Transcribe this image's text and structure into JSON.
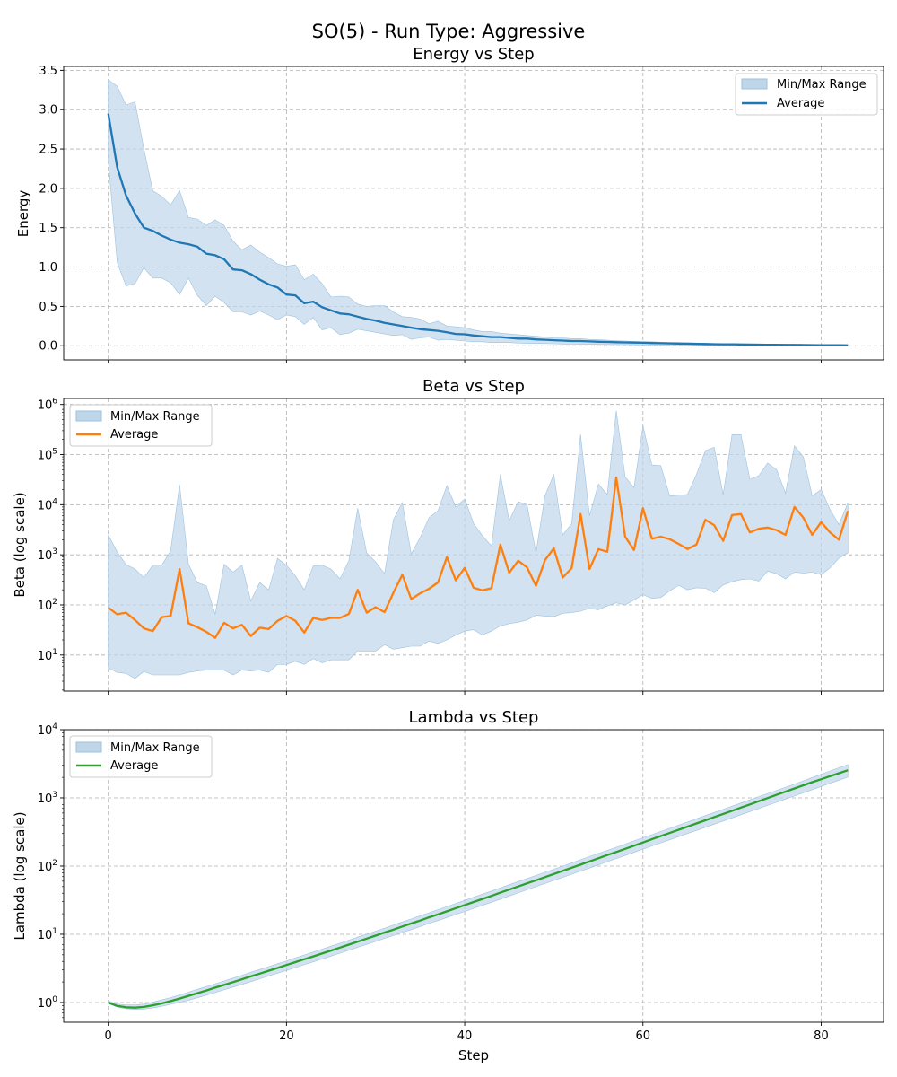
{
  "figure_title": "SO(5) - Run Type: Aggressive",
  "colors": {
    "band_fill": "#bfd6e9",
    "band_edge": "#9ec2df",
    "energy_line": "#1f77b4",
    "beta_line": "#ff7f0e",
    "lambda_line": "#2ca02c"
  },
  "chart_data": [
    {
      "type": "area",
      "title": "Energy vs Step",
      "xlabel": "",
      "ylabel": "Energy",
      "scale": "linear",
      "xlim": [
        -5,
        87
      ],
      "ylim": [
        -0.18,
        3.55
      ],
      "xticks": [
        0,
        20,
        40,
        60,
        80
      ],
      "yticks": [
        0.0,
        0.5,
        1.0,
        1.5,
        2.0,
        2.5,
        3.0,
        3.5
      ],
      "ytick_labels": [
        "0.0",
        "0.5",
        "1.0",
        "1.5",
        "2.0",
        "2.5",
        "3.0",
        "3.5"
      ],
      "grid": true,
      "legend_position": "upper-right",
      "legend": [
        "Min/Max Range",
        "Average"
      ],
      "x": [
        0,
        1,
        2,
        3,
        4,
        5,
        6,
        7,
        8,
        9,
        10,
        11,
        12,
        13,
        14,
        15,
        16,
        17,
        18,
        19,
        20,
        21,
        22,
        23,
        24,
        25,
        26,
        27,
        28,
        29,
        30,
        31,
        32,
        33,
        34,
        35,
        36,
        37,
        38,
        39,
        40,
        41,
        42,
        43,
        44,
        45,
        46,
        47,
        48,
        49,
        50,
        51,
        52,
        53,
        54,
        55,
        56,
        57,
        58,
        59,
        60,
        61,
        62,
        63,
        64,
        65,
        66,
        67,
        68,
        69,
        70,
        71,
        72,
        73,
        74,
        75,
        76,
        77,
        78,
        79,
        80,
        81,
        82,
        83
      ],
      "series": [
        {
          "name": "Average",
          "values": [
            2.95,
            2.27,
            1.91,
            1.68,
            1.5,
            1.46,
            1.4,
            1.35,
            1.31,
            1.29,
            1.26,
            1.17,
            1.15,
            1.1,
            0.97,
            0.96,
            0.91,
            0.84,
            0.78,
            0.74,
            0.65,
            0.64,
            0.54,
            0.56,
            0.49,
            0.45,
            0.41,
            0.4,
            0.37,
            0.34,
            0.32,
            0.29,
            0.27,
            0.25,
            0.23,
            0.21,
            0.2,
            0.19,
            0.17,
            0.15,
            0.145,
            0.13,
            0.12,
            0.11,
            0.11,
            0.1,
            0.09,
            0.09,
            0.08,
            0.075,
            0.07,
            0.065,
            0.06,
            0.06,
            0.055,
            0.05,
            0.048,
            0.045,
            0.042,
            0.04,
            0.038,
            0.035,
            0.032,
            0.03,
            0.028,
            0.026,
            0.024,
            0.022,
            0.02,
            0.019,
            0.018,
            0.016,
            0.015,
            0.014,
            0.013,
            0.012,
            0.011,
            0.01,
            0.009,
            0.008,
            0.007,
            0.006,
            0.006,
            0.005
          ]
        },
        {
          "name": "Max",
          "values": [
            3.38,
            3.3,
            3.06,
            3.1,
            2.5,
            1.97,
            1.9,
            1.79,
            1.97,
            1.63,
            1.61,
            1.53,
            1.6,
            1.53,
            1.33,
            1.22,
            1.28,
            1.19,
            1.12,
            1.04,
            1.01,
            1.03,
            0.84,
            0.91,
            0.79,
            0.62,
            0.63,
            0.62,
            0.53,
            0.5,
            0.51,
            0.51,
            0.43,
            0.37,
            0.36,
            0.34,
            0.28,
            0.31,
            0.25,
            0.24,
            0.23,
            0.2,
            0.18,
            0.18,
            0.16,
            0.15,
            0.14,
            0.13,
            0.12,
            0.11,
            0.1,
            0.1,
            0.09,
            0.09,
            0.08,
            0.075,
            0.07,
            0.065,
            0.06,
            0.055,
            0.052,
            0.05,
            0.045,
            0.042,
            0.04,
            0.037,
            0.034,
            0.031,
            0.028,
            0.026,
            0.024,
            0.022,
            0.02,
            0.019,
            0.018,
            0.016,
            0.015,
            0.014,
            0.012,
            0.011,
            0.01,
            0.009,
            0.008,
            0.007
          ]
        },
        {
          "name": "Min",
          "values": [
            2.35,
            1.06,
            0.76,
            0.79,
            0.99,
            0.86,
            0.86,
            0.8,
            0.65,
            0.86,
            0.64,
            0.51,
            0.63,
            0.55,
            0.43,
            0.43,
            0.39,
            0.44,
            0.39,
            0.33,
            0.39,
            0.37,
            0.27,
            0.36,
            0.2,
            0.23,
            0.14,
            0.16,
            0.21,
            0.19,
            0.17,
            0.15,
            0.13,
            0.14,
            0.08,
            0.1,
            0.11,
            0.07,
            0.08,
            0.07,
            0.06,
            0.05,
            0.05,
            0.04,
            0.04,
            0.04,
            0.035,
            0.03,
            0.03,
            0.028,
            0.025,
            0.022,
            0.02,
            0.019,
            0.018,
            0.016,
            0.015,
            0.014,
            0.013,
            0.012,
            0.011,
            0.01,
            0.009,
            0.008,
            0.008,
            0.007,
            0.006,
            0.006,
            0.005,
            0.005,
            0.004,
            0.004,
            0.003,
            0.003,
            0.003,
            0.003,
            0.002,
            0.002,
            0.002,
            0.002,
            0.002,
            0.001,
            0.001,
            0.001
          ]
        }
      ]
    },
    {
      "type": "area",
      "title": "Beta vs Step",
      "xlabel": "",
      "ylabel": "Beta (log scale)",
      "scale": "log",
      "xlim": [
        -5,
        87
      ],
      "ylim_exp": [
        0.28,
        6.12
      ],
      "xticks": [
        0,
        20,
        40,
        60,
        80
      ],
      "ytick_exponents": [
        1,
        2,
        3,
        4,
        5,
        6
      ],
      "grid": true,
      "legend_position": "upper-left",
      "legend": [
        "Min/Max Range",
        "Average"
      ],
      "x": [
        0,
        1,
        2,
        3,
        4,
        5,
        6,
        7,
        8,
        9,
        10,
        11,
        12,
        13,
        14,
        15,
        16,
        17,
        18,
        19,
        20,
        21,
        22,
        23,
        24,
        25,
        26,
        27,
        28,
        29,
        30,
        31,
        32,
        33,
        34,
        35,
        36,
        37,
        38,
        39,
        40,
        41,
        42,
        43,
        44,
        45,
        46,
        47,
        48,
        49,
        50,
        51,
        52,
        53,
        54,
        55,
        56,
        57,
        58,
        59,
        60,
        61,
        62,
        63,
        64,
        65,
        66,
        67,
        68,
        69,
        70,
        71,
        72,
        73,
        74,
        75,
        76,
        77,
        78,
        79,
        80,
        81,
        82,
        83
      ],
      "series": [
        {
          "name": "Average",
          "values": [
            88,
            65,
            70,
            50,
            34,
            30,
            57,
            60,
            520,
            43,
            36,
            29,
            22,
            44,
            34,
            40,
            24,
            35,
            33,
            48,
            60,
            48,
            28,
            55,
            50,
            55,
            55,
            66,
            200,
            70,
            90,
            72,
            175,
            400,
            130,
            170,
            210,
            280,
            900,
            310,
            550,
            220,
            195,
            215,
            1600,
            440,
            760,
            560,
            240,
            780,
            1350,
            350,
            540,
            6500,
            520,
            1300,
            1150,
            35000,
            2300,
            1250,
            8500,
            2100,
            2300,
            2050,
            1650,
            1300,
            1600,
            5000,
            3900,
            1900,
            6200,
            6500,
            2800,
            3300,
            3500,
            3100,
            2500,
            9000,
            5500,
            2500,
            4500,
            2800,
            2000,
            7500
          ]
        },
        {
          "name": "Max",
          "values": [
            2500,
            1150,
            640,
            520,
            350,
            620,
            620,
            1200,
            25000,
            650,
            280,
            240,
            65,
            650,
            450,
            620,
            120,
            280,
            200,
            850,
            620,
            380,
            200,
            600,
            620,
            520,
            330,
            760,
            8500,
            1100,
            720,
            420,
            5000,
            11000,
            1050,
            2200,
            5500,
            7600,
            24000,
            9000,
            13000,
            4200,
            2400,
            1500,
            40000,
            4800,
            11500,
            10000,
            1100,
            15000,
            40000,
            2500,
            4200,
            250000,
            6000,
            26000,
            16000,
            750000,
            36000,
            22000,
            380000,
            62000,
            60000,
            15000,
            15500,
            16000,
            40000,
            120000,
            140000,
            16000,
            250000,
            250000,
            32000,
            38000,
            68000,
            50000,
            17000,
            150000,
            90000,
            15000,
            20000,
            8000,
            4000,
            11000
          ]
        },
        {
          "name": "Min",
          "values": [
            5.5,
            4.5,
            4.3,
            3.4,
            4.7,
            4,
            4,
            4,
            4,
            4.5,
            4.8,
            5,
            5,
            5,
            4,
            5,
            4.8,
            5,
            4.5,
            6.5,
            6.5,
            7.5,
            6.5,
            8.5,
            7,
            8,
            8,
            8,
            12,
            12,
            12,
            16,
            13,
            14,
            15,
            15,
            19,
            17,
            20,
            25,
            30,
            32,
            25,
            30,
            38,
            42,
            45,
            50,
            62,
            60,
            58,
            68,
            70,
            75,
            85,
            80,
            95,
            110,
            100,
            125,
            160,
            135,
            140,
            190,
            245,
            200,
            220,
            215,
            175,
            250,
            290,
            320,
            330,
            300,
            470,
            420,
            330,
            450,
            430,
            450,
            400,
            550,
            850,
            1100
          ]
        }
      ]
    },
    {
      "type": "area",
      "title": "Lambda vs Step",
      "xlabel": "Step",
      "ylabel": "Lambda (log scale)",
      "scale": "log",
      "xlim": [
        -5,
        87
      ],
      "ylim_exp": [
        -0.29,
        4.0
      ],
      "xticks": [
        0,
        20,
        40,
        60,
        80
      ],
      "ytick_exponents": [
        0,
        1,
        2,
        3,
        4
      ],
      "grid": true,
      "legend_position": "upper-left",
      "legend": [
        "Min/Max Range",
        "Average"
      ],
      "x": [
        0,
        1,
        2,
        3,
        4,
        5,
        6,
        7,
        8,
        9,
        10,
        11,
        12,
        13,
        14,
        15,
        16,
        17,
        18,
        19,
        20,
        21,
        22,
        23,
        24,
        25,
        26,
        27,
        28,
        29,
        30,
        31,
        32,
        33,
        34,
        35,
        36,
        37,
        38,
        39,
        40,
        41,
        42,
        43,
        44,
        45,
        46,
        47,
        48,
        49,
        50,
        51,
        52,
        53,
        54,
        55,
        56,
        57,
        58,
        59,
        60,
        61,
        62,
        63,
        64,
        65,
        66,
        67,
        68,
        69,
        70,
        71,
        72,
        73,
        74,
        75,
        76,
        77,
        78,
        79,
        80,
        81,
        82,
        83
      ],
      "series": [
        {
          "name": "Average",
          "values": [
            1.0,
            0.89,
            0.85,
            0.84,
            0.86,
            0.91,
            0.97,
            1.05,
            1.14,
            1.25,
            1.37,
            1.5,
            1.65,
            1.81,
            1.99,
            2.19,
            2.41,
            2.65,
            2.92,
            3.21,
            3.54,
            3.9,
            4.3,
            4.74,
            5.23,
            5.78,
            6.38,
            7.05,
            7.8,
            8.63,
            9.55,
            10.6,
            11.7,
            13.0,
            14.4,
            15.9,
            17.7,
            19.6,
            21.7,
            24.1,
            26.8,
            29.7,
            33.0,
            36.6,
            40.7,
            45.2,
            50.2,
            55.8,
            62.0,
            68.9,
            76.6,
            85.1,
            94.6,
            105,
            117,
            130,
            145,
            161,
            179,
            199,
            222,
            247,
            275,
            306,
            340,
            378,
            421,
            469,
            522,
            581,
            647,
            720,
            802,
            893,
            994,
            1107,
            1233,
            1373,
            1529,
            1700,
            1880,
            2080,
            2300,
            2540
          ]
        },
        {
          "name": "Max",
          "values": [
            1.05,
            0.95,
            0.92,
            0.92,
            0.95,
            1.01,
            1.09,
            1.18,
            1.29,
            1.42,
            1.56,
            1.71,
            1.88,
            2.07,
            2.28,
            2.51,
            2.77,
            3.05,
            3.36,
            3.7,
            4.08,
            4.5,
            4.97,
            5.49,
            6.06,
            6.7,
            7.41,
            8.2,
            9.08,
            10.05,
            11.1,
            12.3,
            13.7,
            15.2,
            16.8,
            18.7,
            20.7,
            23.0,
            25.5,
            28.3,
            31.4,
            34.9,
            38.8,
            43.1,
            47.9,
            53.2,
            59.1,
            65.7,
            73.0,
            81.1,
            90.1,
            100,
            111,
            124,
            138,
            153,
            170,
            189,
            210,
            234,
            260,
            289,
            322,
            358,
            398,
            443,
            493,
            548,
            610,
            679,
            755,
            841,
            936,
            1042,
            1160,
            1290,
            1435,
            1596,
            1780,
            1990,
            2220,
            2480,
            2770,
            3080
          ]
        },
        {
          "name": "Min",
          "values": [
            0.97,
            0.86,
            0.81,
            0.79,
            0.8,
            0.83,
            0.88,
            0.94,
            1.0,
            1.08,
            1.17,
            1.28,
            1.4,
            1.53,
            1.68,
            1.84,
            2.02,
            2.22,
            2.44,
            2.68,
            2.95,
            3.25,
            3.58,
            3.94,
            4.34,
            4.79,
            5.28,
            5.83,
            6.44,
            7.11,
            7.85,
            8.68,
            9.6,
            10.6,
            11.7,
            13.0,
            14.4,
            15.9,
            17.6,
            19.5,
            21.6,
            24.0,
            26.6,
            29.5,
            32.8,
            36.4,
            40.4,
            44.9,
            49.9,
            55.4,
            61.5,
            68.3,
            75.9,
            84.3,
            93.6,
            104,
            116,
            129,
            143,
            159,
            177,
            197,
            219,
            243,
            270,
            300,
            333,
            370,
            411,
            457,
            508,
            565,
            628,
            698,
            776,
            863,
            960,
            1067,
            1187,
            1320,
            1468,
            1632,
            1815,
            2020
          ]
        }
      ]
    }
  ]
}
